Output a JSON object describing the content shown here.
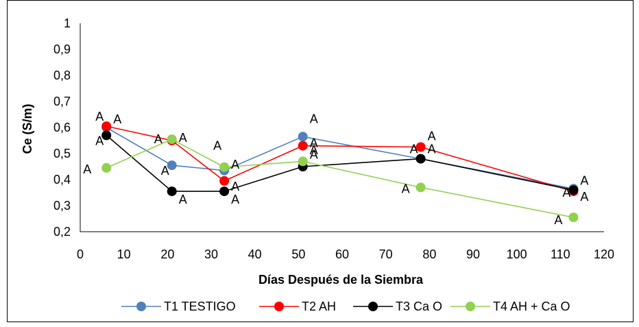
{
  "chart_data": {
    "type": "line",
    "xlabel": "Días Después de la Siembra",
    "ylabel": "Ce  (S/m)",
    "xlim": [
      0,
      120
    ],
    "ylim": [
      0.2,
      1
    ],
    "x_ticks": [
      "0",
      "10",
      "20",
      "30",
      "40",
      "50",
      "60",
      "70",
      "80",
      "90",
      "100",
      "110",
      "120"
    ],
    "y_ticks": [
      "0,2",
      "0,3",
      "0,4",
      "0,5",
      "0,6",
      "0,7",
      "0,8",
      "0,9",
      "1"
    ],
    "grid": false,
    "legend_position": "bottom",
    "point_label_text": "A",
    "series": [
      {
        "name": "T1 TESTIGO",
        "color": "#4f81bd",
        "x": [
          6,
          21,
          33,
          51,
          78,
          113
        ],
        "y": [
          0.6,
          0.455,
          0.435,
          0.565,
          0.48,
          0.365
        ]
      },
      {
        "name": "T2 AH",
        "color": "#ff0000",
        "x": [
          6,
          21,
          33,
          51,
          78,
          113
        ],
        "y": [
          0.605,
          0.55,
          0.395,
          0.53,
          0.525,
          0.355
        ]
      },
      {
        "name": "T3 Ca O",
        "color": "#000000",
        "x": [
          6,
          21,
          33,
          51,
          78,
          113
        ],
        "y": [
          0.57,
          0.355,
          0.355,
          0.45,
          0.48,
          0.36
        ]
      },
      {
        "name": "T4 AH + Ca O",
        "color": "#92d050",
        "x": [
          6,
          21,
          33,
          51,
          78,
          113
        ],
        "y": [
          0.445,
          0.555,
          0.448,
          0.47,
          0.37,
          0.255
        ]
      }
    ]
  }
}
